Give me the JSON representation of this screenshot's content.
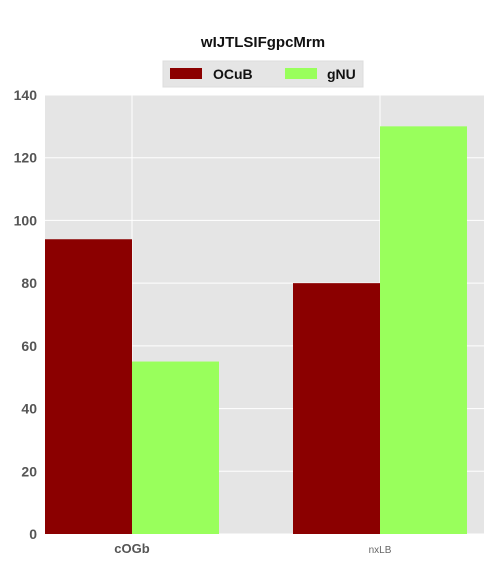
{
  "chart_data": {
    "type": "bar",
    "title": "wIJTLSIFgpcMrm",
    "xlabel": "",
    "ylabel": "",
    "categories": [
      "cOGb",
      "nxLB"
    ],
    "series": [
      {
        "name": "OCuB",
        "values": [
          94,
          80
        ],
        "color": "#8b0000"
      },
      {
        "name": "gNU",
        "values": [
          55,
          130
        ],
        "color": "#99ff5c"
      }
    ],
    "ylim": [
      0,
      140
    ],
    "yticks": [
      0,
      20,
      40,
      60,
      80,
      100,
      120,
      140
    ],
    "grid": true,
    "legend": "top-center",
    "background": "#e5e5e5",
    "grid_color": "#ffffff"
  }
}
